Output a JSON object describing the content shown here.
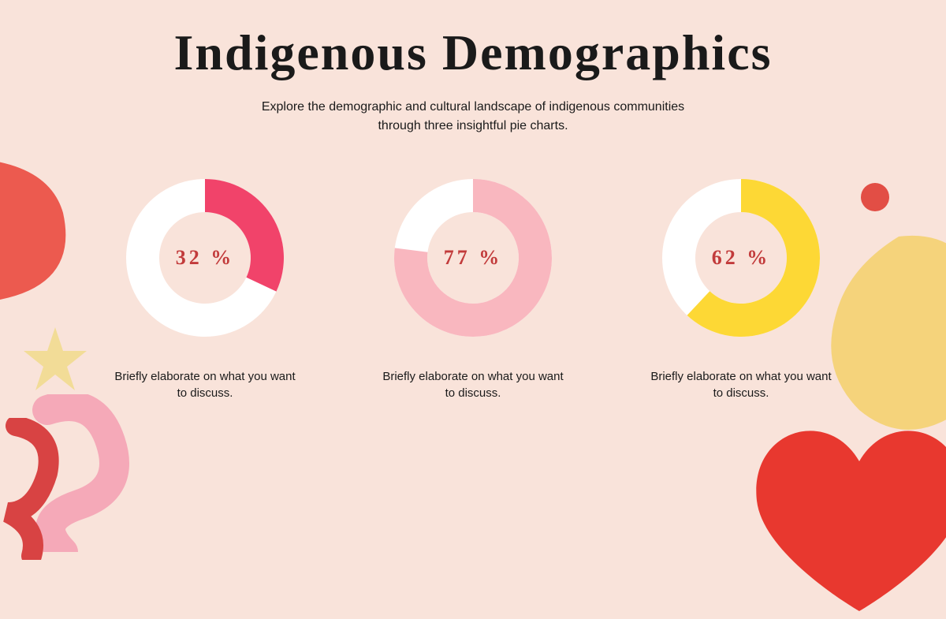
{
  "title": "Indigenous Demographics",
  "subtitle_line1": "Explore the demographic and cultural landscape of indigenous communities",
  "subtitle_line2": "through three insightful pie charts.",
  "background_color": "#f9e3da",
  "title_color": "#1a1a1a",
  "title_fontsize": 64,
  "subtitle_fontsize": 16,
  "percent_label_color": "#c23b3b",
  "percent_label_fontsize": 26,
  "caption_fontsize": 15,
  "donut": {
    "outer_radius": 100,
    "inner_radius": 58,
    "track_color": "#ffffff",
    "start_angle_deg": 0
  },
  "charts": [
    {
      "value": 32,
      "percent_label": "32 %",
      "fill_color": "#f1436a",
      "caption": "Briefly elaborate on what you want to discuss."
    },
    {
      "value": 77,
      "percent_label": "77 %",
      "fill_color": "#f9b7bf",
      "caption": "Briefly elaborate on what you want to discuss."
    },
    {
      "value": 62,
      "percent_label": "62 %",
      "fill_color": "#fdd835",
      "caption": "Briefly elaborate on what you want to discuss."
    }
  ],
  "decorations": {
    "red_blob_left": "#ec5a4f",
    "pink_squiggle": "#f5a9b8",
    "red_squiggle": "#d84343",
    "yellow_star": "#f0d97a",
    "red_dot": "#e24e45",
    "yellow_blob_right": "#f4d06a",
    "red_heart_bottom": "#e8382f"
  }
}
